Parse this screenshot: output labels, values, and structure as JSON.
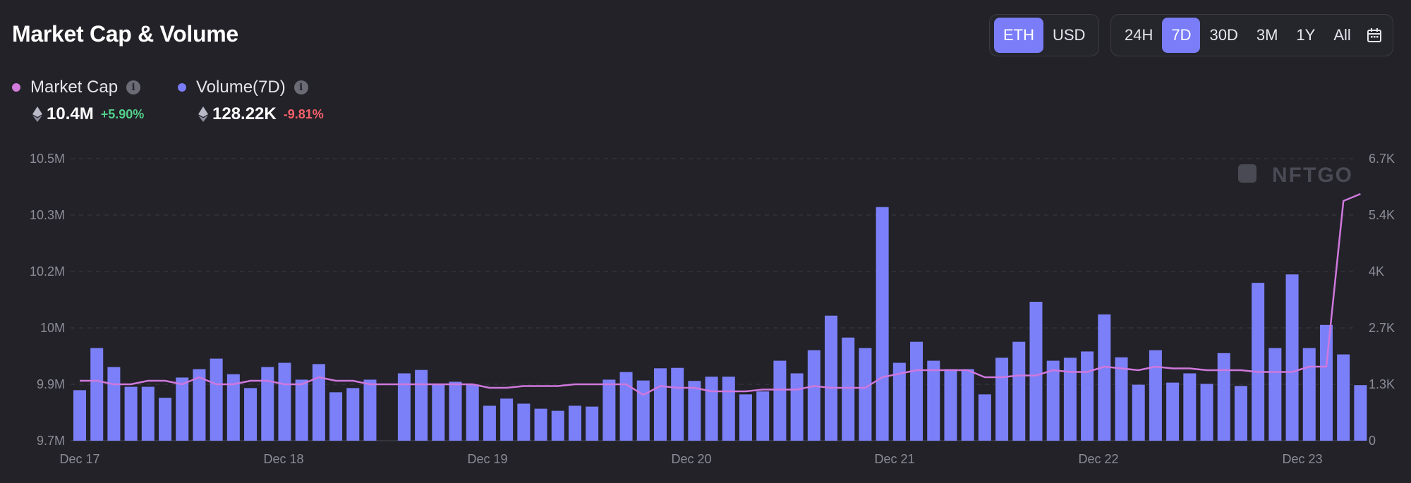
{
  "header": {
    "title": "Market Cap & Volume",
    "currency_options": [
      "ETH",
      "USD"
    ],
    "currency_selected": "ETH",
    "range_options": [
      "24H",
      "7D",
      "30D",
      "3M",
      "1Y",
      "All"
    ],
    "range_selected": "7D",
    "calendar_icon": "calendar-icon"
  },
  "legend": {
    "market_cap": {
      "label": "Market Cap",
      "value": "10.4M",
      "change": "+5.90%",
      "color": "#d17bdc",
      "change_color": "#53d08a",
      "icon": "eth-icon"
    },
    "volume": {
      "label": "Volume(7D)",
      "value": "128.22K",
      "change": "-9.81%",
      "color": "#7a7df7",
      "change_color": "#f4616b",
      "icon": "eth-icon"
    }
  },
  "watermark": "NFTGO",
  "colors": {
    "background": "#222228",
    "bar": "#7c80f8",
    "line": "#cf78dd",
    "accent": "#7a7df7",
    "grid": "#3a3a44",
    "tick": "#8d8d99"
  },
  "chart_data": {
    "type": "bar",
    "left_axis": {
      "ticks": [
        "9.7M",
        "9.9M",
        "10M",
        "10.2M",
        "10.3M",
        "10.5M"
      ],
      "range": [
        9.7,
        10.5
      ],
      "unit": "M"
    },
    "right_axis": {
      "ticks": [
        "0",
        "1.3K",
        "2.7K",
        "4K",
        "5.4K",
        "6.7K"
      ],
      "range": [
        0,
        6.7
      ],
      "unit": "K"
    },
    "x_ticks": [
      "Dec 17",
      "Dec 18",
      "Dec 19",
      "Dec 20",
      "Dec 21",
      "Dec 22",
      "Dec 23"
    ],
    "grid": true,
    "series": [
      {
        "name": "Volume(7D)",
        "axis": "right",
        "kind": "bar",
        "values": [
          1.2,
          2.2,
          1.75,
          1.28,
          1.28,
          1.02,
          1.5,
          1.7,
          1.95,
          1.58,
          1.25,
          1.75,
          1.85,
          1.45,
          1.82,
          1.15,
          1.25,
          1.45,
          0,
          1.6,
          1.68,
          1.35,
          1.4,
          1.33,
          0.83,
          1.0,
          0.88,
          0.76,
          0.71,
          0.83,
          0.81,
          1.45,
          1.63,
          1.43,
          1.72,
          1.73,
          1.42,
          1.52,
          1.52,
          1.1,
          1.17,
          1.9,
          1.6,
          2.15,
          2.97,
          2.45,
          2.2,
          5.55,
          1.85,
          2.35,
          1.9,
          1.7,
          1.7,
          1.1,
          1.97,
          2.35,
          3.3,
          1.9,
          1.97,
          2.12,
          3.0,
          1.98,
          1.33,
          2.15,
          1.38,
          1.6,
          1.35,
          2.08,
          1.3,
          3.75,
          2.2,
          3.95,
          2.2,
          2.75,
          2.05,
          1.32
        ],
        "x_start": "Dec 17",
        "interval_hours": 2.0
      },
      {
        "name": "Market Cap",
        "axis": "left",
        "kind": "line",
        "values": [
          9.87,
          9.87,
          9.86,
          9.86,
          9.87,
          9.87,
          9.86,
          9.88,
          9.86,
          9.86,
          9.87,
          9.87,
          9.86,
          9.86,
          9.88,
          9.87,
          9.87,
          9.86,
          9.86,
          9.86,
          9.86,
          9.86,
          9.86,
          9.86,
          9.85,
          9.85,
          9.855,
          9.855,
          9.855,
          9.86,
          9.86,
          9.86,
          9.86,
          9.83,
          9.855,
          9.85,
          9.85,
          9.84,
          9.84,
          9.84,
          9.845,
          9.845,
          9.845,
          9.855,
          9.85,
          9.85,
          9.85,
          9.88,
          9.89,
          9.9,
          9.9,
          9.9,
          9.9,
          9.88,
          9.88,
          9.885,
          9.885,
          9.9,
          9.895,
          9.895,
          9.91,
          9.905,
          9.9,
          9.91,
          9.905,
          9.905,
          9.9,
          9.9,
          9.9,
          9.895,
          9.895,
          9.895,
          9.91,
          9.91,
          10.38,
          10.4
        ],
        "x_start": "Dec 17",
        "interval_hours": 2.0
      }
    ]
  }
}
